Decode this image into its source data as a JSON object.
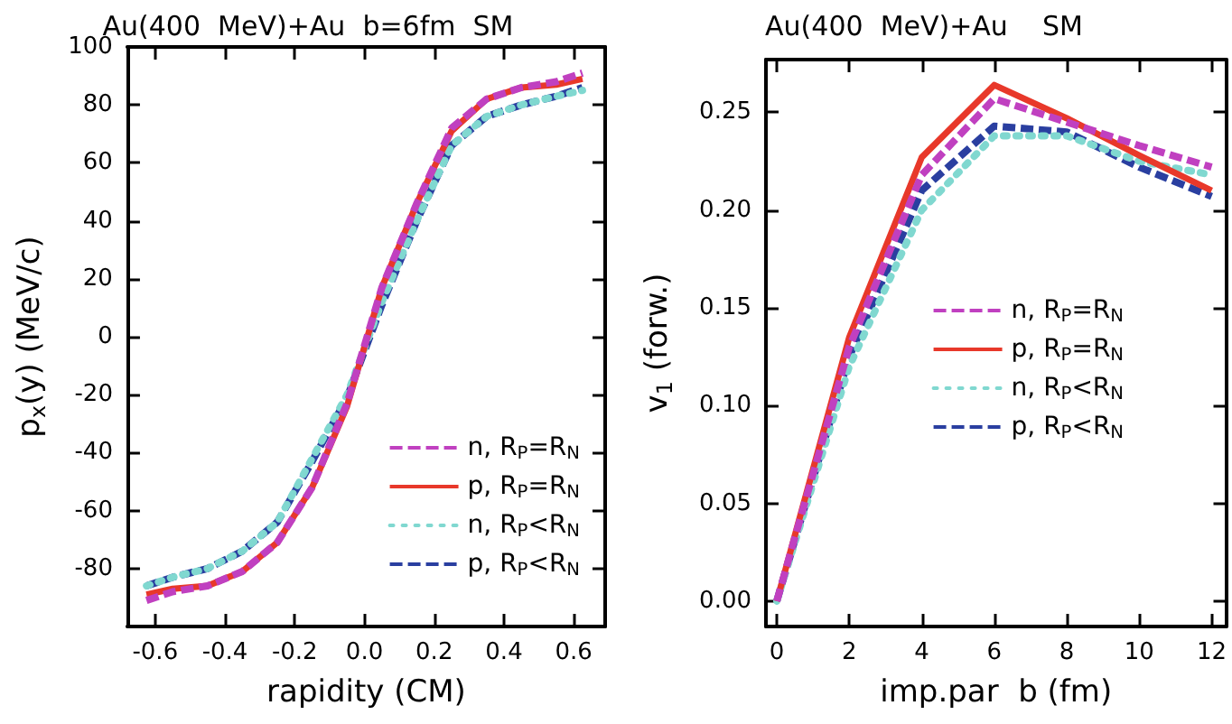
{
  "chart_data": [
    {
      "type": "line",
      "title": "Au(400  MeV)+Au  b=6fm  SM",
      "xlabel": "rapidity (CM)",
      "ylabel": "p$_{x}$(y) (MeV/c)",
      "x": [
        -0.625,
        -0.55,
        -0.45,
        -0.35,
        -0.25,
        -0.15,
        -0.05,
        0.05,
        0.15,
        0.25,
        0.35,
        0.45,
        0.55,
        0.625
      ],
      "series": [
        {
          "name": "n, R$_{P}$=R$_{N}$",
          "color": "#c040c0",
          "line_style": "dashed",
          "values": [
            -91,
            -88,
            -86,
            -81,
            -71,
            -52,
            -23,
            17,
            46,
            72,
            82,
            86,
            88,
            91
          ]
        },
        {
          "name": "p, R$_{P}$=R$_{N}$",
          "color": "#e8382a",
          "line_style": "solid",
          "values": [
            -89,
            -87,
            -86,
            -81,
            -71,
            -52,
            -24,
            17,
            46,
            71,
            82,
            86,
            87,
            89
          ]
        },
        {
          "name": "n, R$_{P}$<R$_{N}$",
          "color": "#80d8d0",
          "line_style": "dotted",
          "values": [
            -86,
            -83,
            -80,
            -74,
            -64,
            -42,
            -20,
            12,
            40,
            66,
            76,
            80,
            83,
            85
          ]
        },
        {
          "name": "p, R$_{P}$<R$_{N}$",
          "color": "#2a3fa0",
          "line_style": "dashed",
          "values": [
            -86,
            -83,
            -80,
            -74,
            -64,
            -43,
            -21,
            11,
            40,
            66,
            76,
            80,
            83,
            86
          ]
        }
      ],
      "xlim": [
        -0.68,
        0.69
      ],
      "xticks": [
        {
          "value": -0.6,
          "label": "-0.6"
        },
        {
          "value": -0.4,
          "label": "-0.4"
        },
        {
          "value": -0.2,
          "label": "-0.2"
        },
        {
          "value": 0,
          "label": "0.0"
        },
        0.2,
        0.4,
        0.6
      ],
      "ylim": [
        -100,
        100
      ],
      "yticks": [
        -80,
        -60,
        -40,
        -20,
        0,
        20,
        40,
        60,
        80,
        100
      ],
      "grid": false,
      "legend": "bottom right",
      "marker": "none"
    },
    {
      "type": "line",
      "title": "Au(400  MeV)+Au    SM",
      "xlabel": "imp.par  b (fm)",
      "ylabel": "v$_{1}$ (forw.)",
      "x": [
        0,
        2,
        4,
        6,
        8,
        10,
        12
      ],
      "series": [
        {
          "name": "n, R$_{P}$=R$_{N}$",
          "color": "#c040c0",
          "line_style": "dashed",
          "values": [
            0,
            0.13,
            0.218,
            0.257,
            0.245,
            0.233,
            0.222
          ]
        },
        {
          "name": "p, R$_{P}$=R$_{N}$",
          "color": "#e8382a",
          "line_style": "solid",
          "values": [
            0,
            0.135,
            0.227,
            0.264,
            0.247,
            0.228,
            0.21
          ]
        },
        {
          "name": "n, R$_{P}$<R$_{N}$",
          "color": "#80d8d0",
          "line_style": "dotted",
          "values": [
            0,
            0.12,
            0.2,
            0.238,
            0.238,
            0.225,
            0.218
          ]
        },
        {
          "name": "p, R$_{P}$<R$_{N}$",
          "color": "#2a3fa0",
          "line_style": "dashed",
          "values": [
            0,
            0.125,
            0.21,
            0.243,
            0.24,
            0.222,
            0.207
          ]
        }
      ],
      "xlim": [
        -0.3,
        12.4
      ],
      "xticks": [
        0,
        2,
        4,
        6,
        8,
        10,
        12
      ],
      "ylim": [
        -0.013,
        0.277
      ],
      "yticks": [
        {
          "value": 0,
          "label": "0.00"
        },
        {
          "value": 0.05,
          "label": "0.05"
        },
        {
          "value": 0.1,
          "label": "0.10"
        },
        {
          "value": 0.15,
          "label": "0.15"
        },
        {
          "value": 0.2,
          "label": "0.20"
        },
        {
          "value": 0.25,
          "label": "0.25"
        }
      ],
      "grid": false,
      "legend": "right",
      "marker": "none"
    }
  ]
}
